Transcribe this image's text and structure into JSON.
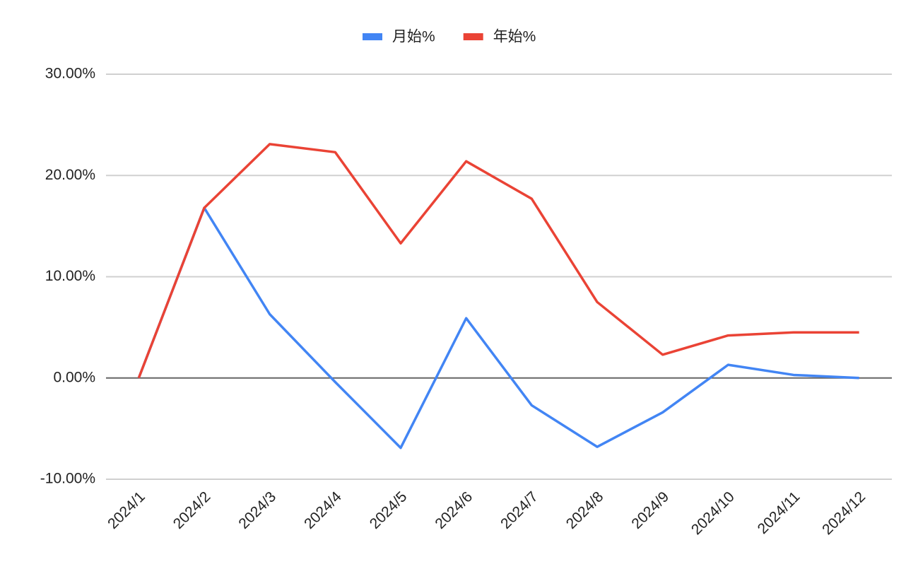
{
  "chart_data": {
    "type": "line",
    "categories": [
      "2024/1",
      "2024/2",
      "2024/3",
      "2024/4",
      "2024/5",
      "2024/6",
      "2024/7",
      "2024/8",
      "2024/9",
      "2024/10",
      "2024/11",
      "2024/12"
    ],
    "series": [
      {
        "name": "月始%",
        "color": "#4285f4",
        "values": [
          0,
          16.8,
          6.3,
          -0.4,
          -6.9,
          5.9,
          -2.7,
          -6.8,
          -3.4,
          1.3,
          0.3,
          0
        ]
      },
      {
        "name": "年始%",
        "color": "#ea4335",
        "values": [
          0,
          16.8,
          23.1,
          22.3,
          13.3,
          21.4,
          17.7,
          7.5,
          2.3,
          4.2,
          4.5,
          4.5
        ]
      }
    ],
    "ylim": [
      -10,
      30
    ],
    "yticks": [
      {
        "value": -10,
        "label": "-10.00%"
      },
      {
        "value": 0,
        "label": "0.00%"
      },
      {
        "value": 10,
        "label": "10.00%"
      },
      {
        "value": 20,
        "label": "20.00%"
      },
      {
        "value": 30,
        "label": "30.00%"
      }
    ],
    "grid": true,
    "legend": "top"
  }
}
